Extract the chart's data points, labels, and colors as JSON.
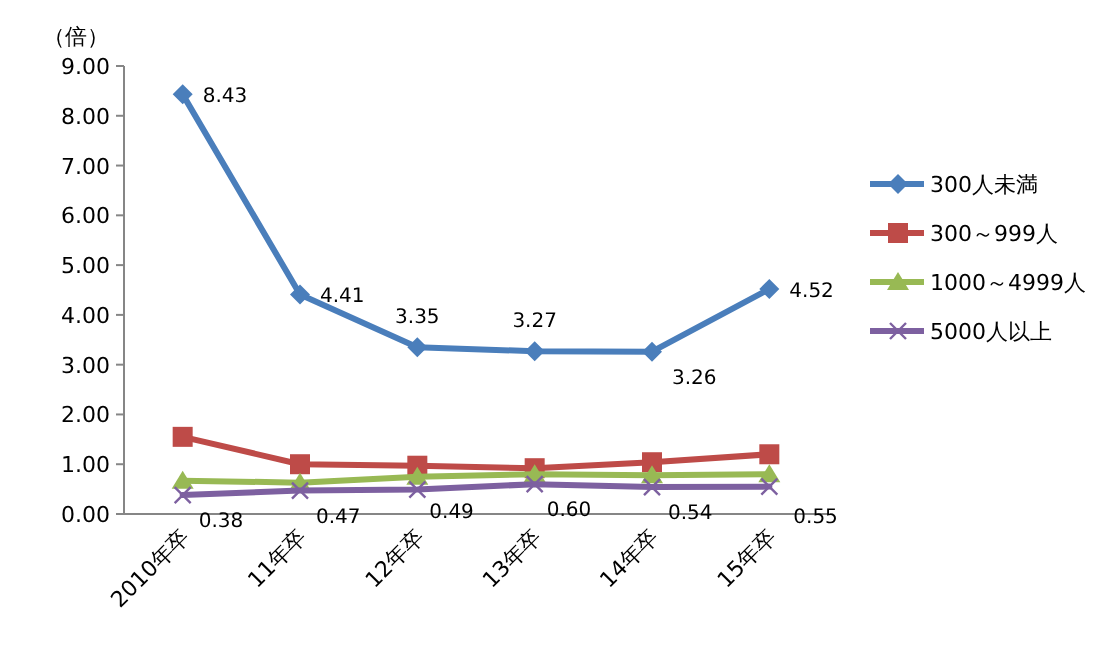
{
  "chart_data": {
    "type": "line",
    "ylabel": "（倍）",
    "categories": [
      "2010年卒",
      "11年卒",
      "12年卒",
      "13年卒",
      "14年卒",
      "15年卒"
    ],
    "ylim": [
      0,
      9
    ],
    "yticks": [
      {
        "value": 0,
        "label": "0.00"
      },
      {
        "value": 1,
        "label": "1.00"
      },
      {
        "value": 2,
        "label": "2.00"
      },
      {
        "value": 3,
        "label": "3.00"
      },
      {
        "value": 4,
        "label": "4.00"
      },
      {
        "value": 5,
        "label": "5.00"
      },
      {
        "value": 6,
        "label": "6.00"
      },
      {
        "value": 7,
        "label": "7.00"
      },
      {
        "value": 8,
        "label": "8.00"
      },
      {
        "value": 9,
        "label": "9.00"
      }
    ],
    "legend": "right",
    "grid": false,
    "series": [
      {
        "name": "300人未満",
        "color": "#4a7ebb",
        "marker": "diamond",
        "values": [
          8.43,
          4.41,
          3.35,
          3.27,
          3.26,
          4.52
        ],
        "value_labels": [
          "8.43",
          "4.41",
          "3.35",
          "3.27",
          "3.26",
          "4.52"
        ]
      },
      {
        "name": "300～999人",
        "color": "#be4b48",
        "marker": "square",
        "values": [
          1.55,
          1.0,
          0.97,
          0.92,
          1.04,
          1.2
        ]
      },
      {
        "name": "1000～4999人",
        "color": "#98b954",
        "marker": "triangle",
        "values": [
          0.67,
          0.63,
          0.75,
          0.8,
          0.78,
          0.8
        ]
      },
      {
        "name": "5000人以上",
        "color": "#7d60a0",
        "marker": "cross",
        "values": [
          0.38,
          0.47,
          0.49,
          0.6,
          0.54,
          0.55
        ],
        "value_labels": [
          "0.38",
          "0.47",
          "0.49",
          "0.60",
          "0.54",
          "0.55"
        ]
      }
    ]
  }
}
